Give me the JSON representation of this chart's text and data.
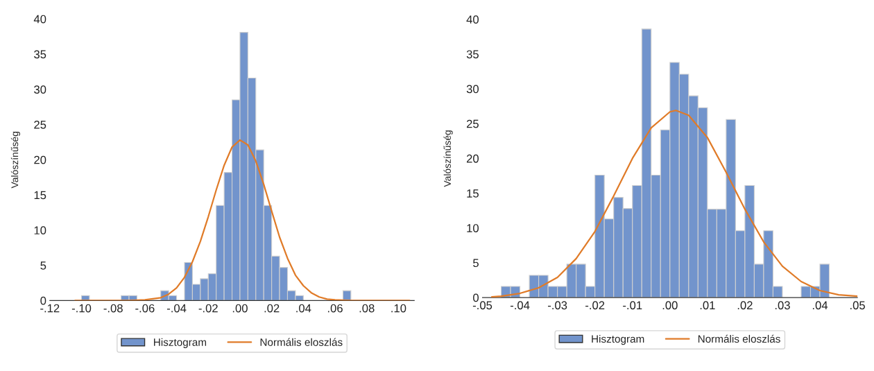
{
  "chart_data": [
    {
      "type": "histogram",
      "ylabel": "Valószínűség",
      "bins": [
        -0.1,
        -0.095,
        -0.09,
        -0.085,
        -0.08,
        -0.075,
        -0.07,
        -0.065,
        -0.06,
        -0.055,
        -0.05,
        -0.045,
        -0.04,
        -0.035,
        -0.03,
        -0.025,
        -0.02,
        -0.015,
        -0.01,
        -0.005,
        0,
        0.005,
        0.01,
        0.015,
        0.02,
        0.025,
        0.03,
        0.035,
        0.04,
        0.045,
        0.05,
        0.055,
        0.06,
        0.065,
        0.07
      ],
      "series": [
        {
          "name": "Hisztogram",
          "color": "#7294cc",
          "values": [
            0.7,
            0,
            0,
            0,
            0,
            0.7,
            0.7,
            0,
            0,
            0,
            1.4,
            0.7,
            0,
            5.4,
            2.3,
            3.1,
            3.8,
            13.5,
            18.2,
            28.5,
            38.1,
            31.6,
            21.4,
            13.5,
            6.3,
            4.7,
            1.4,
            0.7,
            0,
            0,
            0,
            0,
            0,
            1.4
          ]
        },
        {
          "name": "Normális eloszlás",
          "type": "line",
          "color": "#e07b28",
          "x": [
            -0.104,
            -0.08,
            -0.07,
            -0.06,
            -0.05,
            -0.045,
            -0.04,
            -0.035,
            -0.03,
            -0.025,
            -0.02,
            -0.015,
            -0.01,
            -0.005,
            0,
            0.005,
            0.01,
            0.015,
            0.02,
            0.025,
            0.03,
            0.035,
            0.04,
            0.045,
            0.05,
            0.055,
            0.06,
            0.07,
            0.08,
            0.107
          ],
          "values": [
            0,
            0,
            0,
            0.1,
            0.4,
            0.9,
            1.8,
            3.3,
            5.5,
            8.4,
            11.9,
            15.7,
            19.2,
            21.8,
            22.8,
            22.1,
            19.8,
            16.5,
            12.7,
            9,
            6,
            3.6,
            2.1,
            1.1,
            0.5,
            0.2,
            0.1,
            0,
            0,
            0
          ]
        }
      ],
      "xlim": [
        -0.12,
        0.11
      ],
      "xticks": [
        {
          "value": -0.12,
          "label": "-.12"
        },
        {
          "value": -0.1,
          "label": "-.10"
        },
        {
          "value": -0.08,
          "label": "-.08"
        },
        {
          "value": -0.06,
          "label": "-.06"
        },
        {
          "value": -0.04,
          "label": "-.04"
        },
        {
          "value": -0.02,
          "label": "-.02"
        },
        {
          "value": 0,
          "label": ".00"
        },
        {
          "value": 0.02,
          "label": ".02"
        },
        {
          "value": 0.04,
          "label": ".04"
        },
        {
          "value": 0.06,
          "label": ".06"
        },
        {
          "value": 0.08,
          "label": ".08"
        },
        {
          "value": 0.1,
          "label": ".10"
        }
      ],
      "ylim": [
        0,
        40
      ],
      "yticks": [
        0,
        5,
        10,
        15,
        20,
        25,
        30,
        35,
        40
      ],
      "grid": false,
      "legend": "bottom"
    },
    {
      "type": "histogram",
      "ylabel": "Valószínűség",
      "bins": [
        -0.045,
        -0.0425,
        -0.04,
        -0.0375,
        -0.035,
        -0.0325,
        -0.03,
        -0.0275,
        -0.025,
        -0.0225,
        -0.02,
        -0.0175,
        -0.015,
        -0.0125,
        -0.01,
        -0.0075,
        -0.005,
        -0.0025,
        0,
        0.0025,
        0.005,
        0.0075,
        0.01,
        0.0125,
        0.015,
        0.0175,
        0.02,
        0.0225,
        0.025,
        0.0275,
        0.03,
        0.0325,
        0.035,
        0.0375,
        0.04,
        0.0425
      ],
      "series": [
        {
          "name": "Hisztogram",
          "color": "#7294cc",
          "values": [
            1.6,
            1.6,
            0,
            3.2,
            3.2,
            1.6,
            1.6,
            4.8,
            4.8,
            1.6,
            17.6,
            11.3,
            14.4,
            12.8,
            16.1,
            38.6,
            17.6,
            24.1,
            33.8,
            32.1,
            29,
            27.3,
            12.7,
            12.7,
            25.6,
            9.6,
            16.1,
            4.8,
            9.6,
            1.6,
            0,
            0,
            1.6,
            1.6,
            4.8
          ]
        },
        {
          "name": "Normális eloszlás",
          "type": "line",
          "color": "#e07b28",
          "x": [
            -0.0475,
            -0.045,
            -0.04,
            -0.035,
            -0.03,
            -0.025,
            -0.02,
            -0.015,
            -0.01,
            -0.005,
            0,
            0.0016,
            0.005,
            0.01,
            0.015,
            0.02,
            0.025,
            0.03,
            0.035,
            0.04,
            0.045,
            0.05
          ],
          "values": [
            0.1,
            0.2,
            0.6,
            1.4,
            2.9,
            5.6,
            9.5,
            14.6,
            20,
            24.4,
            26.7,
            26.9,
            26.2,
            23,
            18,
            12.7,
            8,
            4.5,
            2.3,
            1,
            0.4,
            0.2
          ]
        }
      ],
      "xlim": [
        -0.05,
        0.05
      ],
      "xticks": [
        {
          "value": -0.05,
          "label": "-.05"
        },
        {
          "value": -0.04,
          "label": "-.04"
        },
        {
          "value": -0.03,
          "label": "-.03"
        },
        {
          "value": -0.02,
          "label": "-.02"
        },
        {
          "value": -0.01,
          "label": "-.01"
        },
        {
          "value": 0,
          "label": ".00"
        },
        {
          "value": 0.01,
          "label": ".01"
        },
        {
          "value": 0.02,
          "label": ".02"
        },
        {
          "value": 0.03,
          "label": ".03"
        },
        {
          "value": 0.04,
          "label": ".04"
        },
        {
          "value": 0.05,
          "label": ".05"
        }
      ],
      "ylim": [
        0,
        40
      ],
      "yticks": [
        0,
        5,
        10,
        15,
        20,
        25,
        30,
        35,
        40
      ],
      "grid": false,
      "legend": "bottom"
    }
  ]
}
